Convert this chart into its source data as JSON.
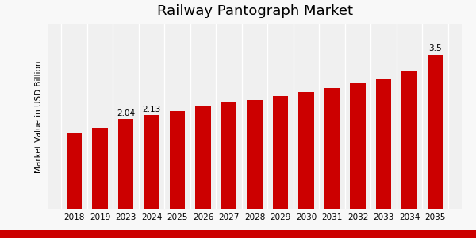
{
  "title": "Railway Pantograph Market",
  "ylabel": "Market Value in USD Billion",
  "years": [
    "2018",
    "2019",
    "2023",
    "2024",
    "2025",
    "2026",
    "2027",
    "2028",
    "2029",
    "2030",
    "2031",
    "2032",
    "2033",
    "2034",
    "2035"
  ],
  "values": [
    1.72,
    1.85,
    2.04,
    2.13,
    2.22,
    2.33,
    2.42,
    2.48,
    2.57,
    2.65,
    2.74,
    2.85,
    2.97,
    3.15,
    3.5
  ],
  "bar_color": "#cc0000",
  "background_color": "#f5f5f5",
  "plot_bg_color": "#f0f0f0",
  "annotated": {
    "2023": "2.04",
    "2024": "2.13",
    "2035": "3.5"
  },
  "ylim": [
    0,
    4.2
  ],
  "title_fontsize": 13,
  "label_fontsize": 7.5,
  "tick_fontsize": 7.5,
  "grid_color": "#ffffff",
  "bottom_bar_color": "#cc0000",
  "bottom_bar_height": 0.04
}
